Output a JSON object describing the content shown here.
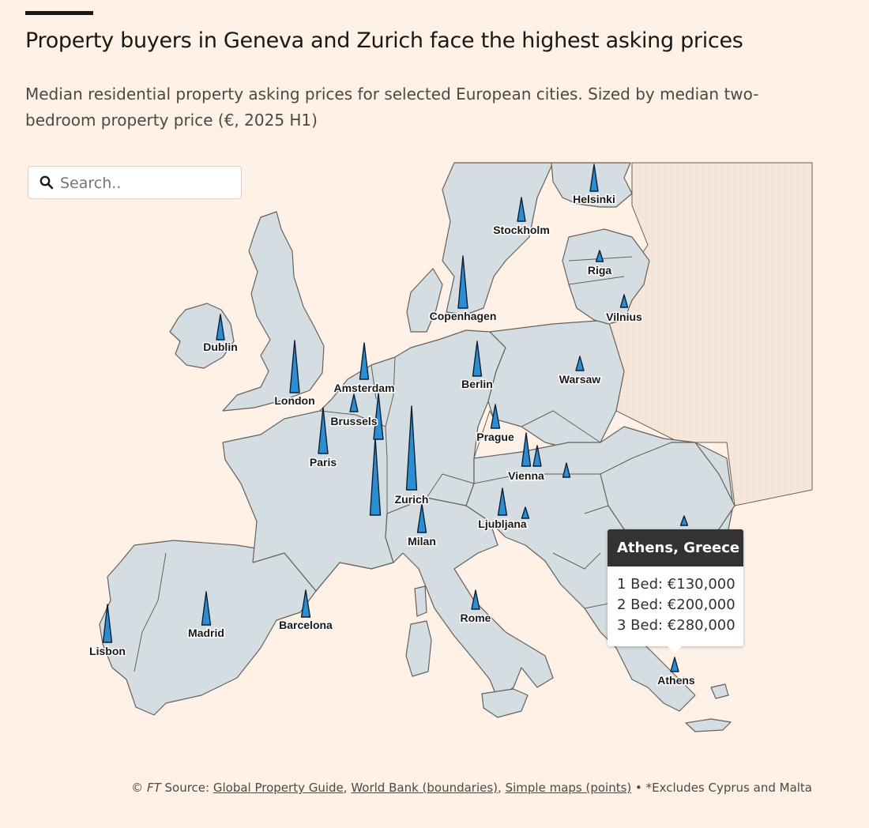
{
  "header": {
    "title": "Property buyers in Geneva and Zurich face the highest asking prices",
    "subtitle": "Median residential property asking prices for selected European cities. Sized by median two-bedroom property price (€, 2025 H1)"
  },
  "search": {
    "placeholder": "Search.."
  },
  "colors": {
    "land": "#d4dde2",
    "border": "#66605c",
    "spike": "#2b8ed2",
    "spike_edge": "#0d1f33",
    "background": "#fff1e5"
  },
  "cities": [
    {
      "name": "Helsinki",
      "label": "Helsinki"
    },
    {
      "name": "Stockholm",
      "label": "Stockholm"
    },
    {
      "name": "Riga",
      "label": "Riga"
    },
    {
      "name": "Copenhagen",
      "label": "Copenhagen"
    },
    {
      "name": "Vilnius",
      "label": "Vilnius"
    },
    {
      "name": "Dublin",
      "label": "Dublin"
    },
    {
      "name": "Berlin",
      "label": "Berlin"
    },
    {
      "name": "Warsaw",
      "label": "Warsaw"
    },
    {
      "name": "Amsterdam",
      "label": "Amsterdam"
    },
    {
      "name": "London",
      "label": "London"
    },
    {
      "name": "Brussels",
      "label": "Brussels"
    },
    {
      "name": "Prague",
      "label": "Prague"
    },
    {
      "name": "Paris",
      "label": "Paris"
    },
    {
      "name": "Vienna",
      "label": "Vienna"
    },
    {
      "name": "Zurich",
      "label": "Zurich"
    },
    {
      "name": "Ljubljana",
      "label": "Ljubljana"
    },
    {
      "name": "Milan",
      "label": "Milan"
    },
    {
      "name": "Barcelona",
      "label": "Barcelona"
    },
    {
      "name": "Madrid",
      "label": "Madrid"
    },
    {
      "name": "Rome",
      "label": "Rome"
    },
    {
      "name": "Lisbon",
      "label": "Lisbon"
    },
    {
      "name": "Athens",
      "label": "Athens"
    }
  ],
  "tooltip": {
    "title": "Athens, Greece",
    "rows": [
      "1 Bed: €130,000",
      "2 Bed: €200,000",
      "3 Bed: €280,000"
    ]
  },
  "footer": {
    "copyright": "©",
    "ft": "FT",
    "source_label": "Source:",
    "link1": "Global Property Guide",
    "link2": "World Bank (boundaries)",
    "link3": "Simple maps (points)",
    "note": "• *Excludes Cyprus and Malta"
  }
}
